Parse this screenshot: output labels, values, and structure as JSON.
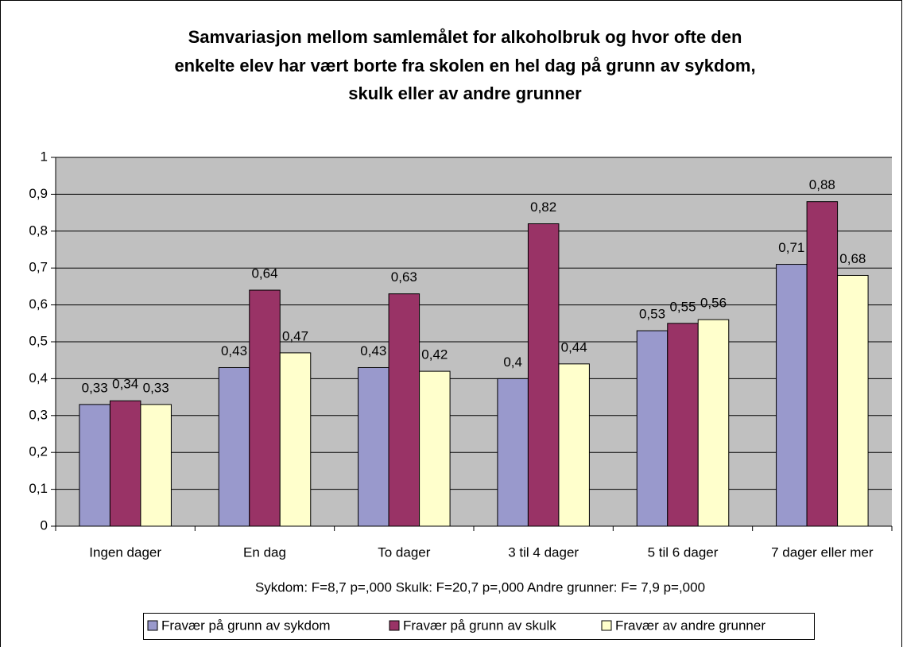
{
  "chart_data": {
    "type": "bar",
    "title": [
      "Samvariasjon mellom samlemålet for alkoholbruk og hvor ofte den",
      "enkelte elev har vært borte fra skolen en hel dag på grunn av sykdom,",
      "skulk eller av andre grunner"
    ],
    "x_label": "Sykdom: F=8,7 p=,000  Skulk: F=20,7 p=,000  Andre grunner: F= 7,9 p=,000",
    "categories": [
      "Ingen dager",
      "En dag",
      "To dager",
      "3 til 4 dager",
      "5 til 6 dager",
      "7 dager eller mer"
    ],
    "series": [
      {
        "name": "Fravær på grunn av sykdom",
        "color": "#9999cc",
        "values": [
          0.33,
          0.43,
          0.43,
          0.4,
          0.53,
          0.71
        ],
        "value_labels": [
          "0,33",
          "0,43",
          "0,43",
          "0,4",
          "0,53",
          "0,71"
        ]
      },
      {
        "name": "Fravær på grunn av skulk",
        "color": "#993366",
        "values": [
          0.34,
          0.64,
          0.63,
          0.82,
          0.55,
          0.88
        ],
        "value_labels": [
          "0,34",
          "0,64",
          "0,63",
          "0,82",
          "0,55",
          "0,88"
        ]
      },
      {
        "name": "Fravær av andre grunner",
        "color": "#ffffcc",
        "values": [
          0.33,
          0.47,
          0.42,
          0.44,
          0.56,
          0.68
        ],
        "value_labels": [
          "0,33",
          "0,47",
          "0,42",
          "0,44",
          "0,56",
          "0,68"
        ]
      }
    ],
    "ylim": [
      0,
      1
    ],
    "yticks": [
      0,
      {
        "value": 0.1,
        "label": "0,1"
      },
      {
        "value": 0.2,
        "label": "0,2"
      },
      {
        "value": 0.3,
        "label": "0,3"
      },
      {
        "value": 0.4,
        "label": "0,4"
      },
      {
        "value": 0.5,
        "label": "0,5"
      },
      {
        "value": 0.6,
        "label": "0,6"
      },
      {
        "value": 0.7,
        "label": "0,7"
      },
      {
        "value": 0.8,
        "label": "0,8"
      },
      {
        "value": 0.9,
        "label": "0,9"
      },
      1
    ],
    "legend": "bottom"
  }
}
